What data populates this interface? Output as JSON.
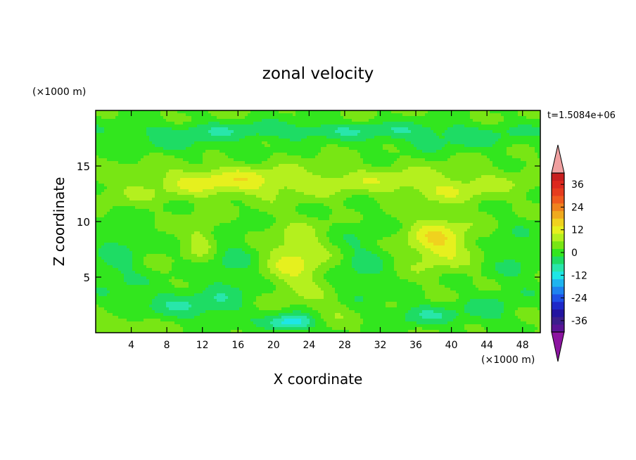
{
  "chart_data": {
    "type": "heatmap",
    "title": "zonal velocity",
    "xlabel": "X coordinate",
    "ylabel": "Z coordinate",
    "x_unit": "(×1000 m)",
    "y_unit": "(×1000 m)",
    "time_label": "t=1.5084e+06",
    "xlim": [
      0,
      50
    ],
    "ylim": [
      0,
      20
    ],
    "x_ticks": [
      "4",
      "8",
      "12",
      "16",
      "20",
      "24",
      "28",
      "32",
      "36",
      "40",
      "44",
      "48"
    ],
    "x_tick_values": [
      4,
      8,
      12,
      16,
      20,
      24,
      28,
      32,
      36,
      40,
      44,
      48
    ],
    "y_ticks": [
      "5",
      "10",
      "15"
    ],
    "y_tick_values": [
      5,
      10,
      15
    ],
    "colorbar": {
      "range": [
        -42,
        42
      ],
      "step": 4,
      "labels": [
        "36",
        "24",
        "12",
        "0",
        "-12",
        "-24",
        "-36"
      ],
      "label_values": [
        36,
        24,
        12,
        0,
        -12,
        -24,
        -36
      ],
      "colors": [
        "#5a1496",
        "#3c1e8c",
        "#2314a0",
        "#1e28c8",
        "#1e50e6",
        "#1e82f0",
        "#1eb4f0",
        "#1ee6e6",
        "#28e6aa",
        "#1edc64",
        "#32e61e",
        "#78e614",
        "#b4f01e",
        "#e6f01e",
        "#f0d21e",
        "#f0aa1e",
        "#f0821e",
        "#f05a1e",
        "#e63c1e",
        "#dc281e",
        "#c81e1e"
      ],
      "under_color": "#8c14a0",
      "over_color": "#f0a0a0"
    },
    "features": [
      {
        "x": 24,
        "z": 18.2,
        "sx": 24,
        "sz": 0.8,
        "v": -7
      },
      {
        "x": 10,
        "z": 17.0,
        "sx": 8,
        "sz": 1.0,
        "v": -4
      },
      {
        "x": 40,
        "z": 17.2,
        "sx": 9,
        "sz": 1.0,
        "v": -4
      },
      {
        "x": 14,
        "z": 13.6,
        "sx": 8,
        "sz": 1.3,
        "v": 9
      },
      {
        "x": 33,
        "z": 13.6,
        "sx": 16,
        "sz": 1.3,
        "v": 6
      },
      {
        "x": 40,
        "z": 12.6,
        "sx": 5,
        "sz": 1.0,
        "v": 4
      },
      {
        "x": 3,
        "z": 12.5,
        "sx": 4,
        "sz": 1.0,
        "v": 3
      },
      {
        "x": 38.5,
        "z": 8.2,
        "sx": 3.5,
        "sz": 2.2,
        "v": 12
      },
      {
        "x": 22.5,
        "z": 6.5,
        "sx": 3.5,
        "sz": 3.0,
        "v": 9
      },
      {
        "x": 12,
        "z": 8.5,
        "sx": 1.8,
        "sz": 2.2,
        "v": 7
      },
      {
        "x": 2.5,
        "z": 6.5,
        "sx": 3.0,
        "sz": 3.5,
        "v": -5
      },
      {
        "x": 15,
        "z": 6.0,
        "sx": 3.5,
        "sz": 3.5,
        "v": -5
      },
      {
        "x": 30,
        "z": 6.0,
        "sx": 3.0,
        "sz": 4.0,
        "v": -5
      },
      {
        "x": 47.5,
        "z": 6.5,
        "sx": 3.0,
        "sz": 3.5,
        "v": -4
      },
      {
        "x": 22,
        "z": 0.9,
        "sx": 2.5,
        "sz": 0.8,
        "v": -16
      },
      {
        "x": 10,
        "z": 2.5,
        "sx": 6.0,
        "sz": 1.4,
        "v": -7
      },
      {
        "x": 37,
        "z": 1.6,
        "sx": 4.0,
        "sz": 1.0,
        "v": -7
      },
      {
        "x": 44,
        "z": 2.0,
        "sx": 3.0,
        "sz": 1.5,
        "v": -5
      },
      {
        "x": 3,
        "z": 1.2,
        "sx": 3.0,
        "sz": 1.0,
        "v": 4
      },
      {
        "x": 27,
        "z": 2.0,
        "sx": 3.0,
        "sz": 1.5,
        "v": 3
      }
    ]
  }
}
